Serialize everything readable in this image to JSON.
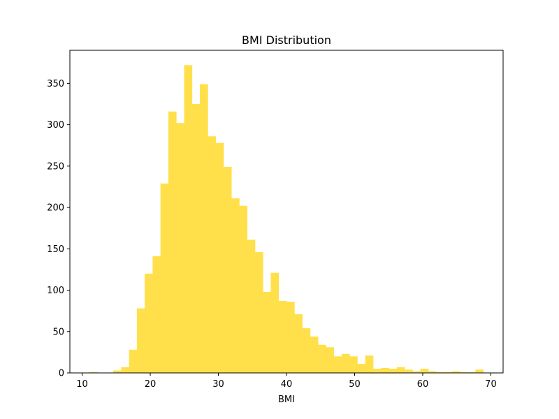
{
  "chart_data": {
    "type": "bar",
    "title": "BMI Distribution",
    "xlabel": "BMI",
    "ylabel": "",
    "xlim": [
      8.2,
      71.8
    ],
    "ylim": [
      0,
      390
    ],
    "x_ticks": [
      10,
      20,
      30,
      40,
      50,
      60,
      70
    ],
    "y_ticks": [
      0,
      50,
      100,
      150,
      200,
      250,
      300,
      350
    ],
    "grid": false,
    "bar_color": "#ffe04a",
    "bin_start": 11.1,
    "bin_width": 1.156,
    "values": [
      1,
      0,
      0,
      3,
      7,
      28,
      78,
      120,
      141,
      229,
      316,
      302,
      372,
      325,
      349,
      286,
      278,
      249,
      211,
      202,
      161,
      146,
      98,
      121,
      87,
      86,
      71,
      54,
      44,
      34,
      31,
      20,
      23,
      20,
      11,
      21,
      5,
      6,
      5,
      7,
      4,
      2,
      5,
      2,
      1,
      1,
      2,
      1,
      1,
      4
    ]
  }
}
